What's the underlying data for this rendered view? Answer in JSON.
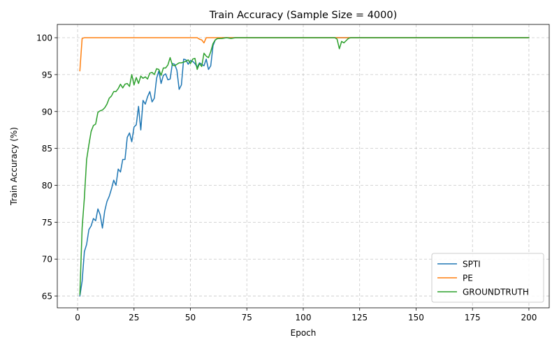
{
  "chart_data": {
    "type": "line",
    "title": "Train Accuracy (Sample Size = 4000)",
    "xlabel": "Epoch",
    "ylabel": "Train Accuracy (%)",
    "xlim": [
      -9,
      209
    ],
    "ylim": [
      63.4,
      101.8
    ],
    "xticks": [
      0,
      25,
      50,
      75,
      100,
      125,
      150,
      175,
      200
    ],
    "yticks": [
      65,
      70,
      75,
      80,
      85,
      90,
      95,
      100
    ],
    "grid": true,
    "legend_position": "lower-right",
    "series": [
      {
        "name": "SPTI",
        "color": "#1f77b4",
        "points": [
          [
            1,
            65
          ],
          [
            2,
            67
          ],
          [
            3,
            71
          ],
          [
            4,
            72
          ],
          [
            5,
            74
          ],
          [
            6,
            74.5
          ],
          [
            7,
            75.5
          ],
          [
            8,
            75.2
          ],
          [
            9,
            76.8
          ],
          [
            10,
            76
          ],
          [
            11,
            74.2
          ],
          [
            12,
            76.5
          ],
          [
            13,
            77.8
          ],
          [
            14,
            78.5
          ],
          [
            15,
            79.5
          ],
          [
            16,
            80.7
          ],
          [
            17,
            80
          ],
          [
            18,
            82.2
          ],
          [
            19,
            81.8
          ],
          [
            20,
            83.5
          ],
          [
            21,
            83.5
          ],
          [
            22,
            86.5
          ],
          [
            23,
            87.1
          ],
          [
            24,
            85.9
          ],
          [
            25,
            87.9
          ],
          [
            26,
            88.2
          ],
          [
            27,
            90.7
          ],
          [
            28,
            87.5
          ],
          [
            29,
            91.5
          ],
          [
            30,
            91
          ],
          [
            31,
            92
          ],
          [
            32,
            92.7
          ],
          [
            33,
            91.3
          ],
          [
            34,
            91.8
          ],
          [
            35,
            94.5
          ],
          [
            36,
            95.5
          ],
          [
            37,
            93.8
          ],
          [
            38,
            94.9
          ],
          [
            39,
            95.1
          ],
          [
            40,
            94.3
          ],
          [
            41,
            94.4
          ],
          [
            42,
            96.5
          ],
          [
            43,
            96.4
          ],
          [
            44,
            95.6
          ],
          [
            45,
            93
          ],
          [
            46,
            93.6
          ],
          [
            47,
            97.1
          ],
          [
            48,
            97
          ],
          [
            49,
            96.4
          ],
          [
            50,
            96.9
          ],
          [
            51,
            96.8
          ],
          [
            52,
            96.5
          ],
          [
            53,
            96
          ],
          [
            54,
            96.6
          ],
          [
            55,
            96.4
          ],
          [
            56,
            96.2
          ],
          [
            57,
            97.1
          ],
          [
            58,
            95.7
          ],
          [
            59,
            96.2
          ],
          [
            60,
            98.9
          ],
          [
            61,
            99.7
          ],
          [
            62,
            99.9
          ],
          [
            63,
            99.9
          ],
          [
            64,
            100
          ],
          [
            65,
            100
          ],
          [
            70,
            100
          ],
          [
            75,
            100
          ],
          [
            80,
            100
          ],
          [
            90,
            100
          ],
          [
            100,
            100
          ],
          [
            110,
            100
          ],
          [
            120,
            100
          ],
          [
            130,
            100
          ],
          [
            140,
            100
          ],
          [
            150,
            100
          ],
          [
            160,
            100
          ],
          [
            170,
            100
          ],
          [
            180,
            100
          ],
          [
            190,
            100
          ],
          [
            200,
            100
          ]
        ]
      },
      {
        "name": "PE",
        "color": "#ff7f0e",
        "points": [
          [
            1,
            95.5
          ],
          [
            2,
            99.9
          ],
          [
            3,
            100
          ],
          [
            5,
            100
          ],
          [
            10,
            100
          ],
          [
            20,
            100
          ],
          [
            30,
            100
          ],
          [
            40,
            100
          ],
          [
            50,
            100
          ],
          [
            53,
            100
          ],
          [
            54,
            99.8
          ],
          [
            55,
            99.7
          ],
          [
            56,
            99.3
          ],
          [
            57,
            100
          ],
          [
            58,
            100
          ],
          [
            60,
            100
          ],
          [
            70,
            100
          ],
          [
            80,
            100
          ],
          [
            90,
            100
          ],
          [
            100,
            100
          ],
          [
            110,
            100
          ],
          [
            120,
            100
          ],
          [
            130,
            100
          ],
          [
            140,
            100
          ],
          [
            150,
            100
          ],
          [
            160,
            100
          ],
          [
            170,
            100
          ],
          [
            180,
            100
          ],
          [
            190,
            100
          ],
          [
            200,
            100
          ]
        ]
      },
      {
        "name": "GROUNDTRUTH",
        "color": "#2ca02c",
        "points": [
          [
            1,
            65.2
          ],
          [
            2,
            74.2
          ],
          [
            3,
            78.3
          ],
          [
            4,
            83.5
          ],
          [
            5,
            85.5
          ],
          [
            6,
            87.3
          ],
          [
            7,
            88.1
          ],
          [
            8,
            88.3
          ],
          [
            9,
            89.9
          ],
          [
            10,
            90.1
          ],
          [
            11,
            90.2
          ],
          [
            12,
            90.5
          ],
          [
            13,
            91
          ],
          [
            14,
            91.8
          ],
          [
            15,
            92.1
          ],
          [
            16,
            92.7
          ],
          [
            17,
            92.7
          ],
          [
            18,
            93.1
          ],
          [
            19,
            93.7
          ],
          [
            20,
            93.2
          ],
          [
            21,
            93.7
          ],
          [
            22,
            93.8
          ],
          [
            23,
            93.4
          ],
          [
            24,
            95
          ],
          [
            25,
            93.6
          ],
          [
            26,
            94.6
          ],
          [
            27,
            93.8
          ],
          [
            28,
            94.8
          ],
          [
            29,
            94.5
          ],
          [
            30,
            94.7
          ],
          [
            31,
            94.4
          ],
          [
            32,
            95.2
          ],
          [
            33,
            95.3
          ],
          [
            34,
            95
          ],
          [
            35,
            95.8
          ],
          [
            36,
            95.7
          ],
          [
            37,
            94.9
          ],
          [
            38,
            95.9
          ],
          [
            39,
            95.9
          ],
          [
            40,
            96.3
          ],
          [
            41,
            97.3
          ],
          [
            42,
            96.3
          ],
          [
            43,
            96.2
          ],
          [
            44,
            96.4
          ],
          [
            45,
            96.6
          ],
          [
            46,
            96.6
          ],
          [
            47,
            96.7
          ],
          [
            48,
            96.8
          ],
          [
            49,
            97
          ],
          [
            50,
            96.5
          ],
          [
            51,
            97.1
          ],
          [
            52,
            97.2
          ],
          [
            53,
            95.7
          ],
          [
            54,
            96.5
          ],
          [
            55,
            96.1
          ],
          [
            56,
            97.9
          ],
          [
            57,
            97.5
          ],
          [
            58,
            97.3
          ],
          [
            59,
            98.1
          ],
          [
            60,
            99.2
          ],
          [
            61,
            99.7
          ],
          [
            62,
            99.9
          ],
          [
            64,
            99.9
          ],
          [
            66,
            100
          ],
          [
            68,
            99.9
          ],
          [
            70,
            100
          ],
          [
            80,
            100
          ],
          [
            90,
            100
          ],
          [
            100,
            100
          ],
          [
            110,
            100
          ],
          [
            114,
            100
          ],
          [
            115,
            99.8
          ],
          [
            116,
            98.5
          ],
          [
            117,
            99.5
          ],
          [
            118,
            99.3
          ],
          [
            119,
            99.6
          ],
          [
            120,
            99.9
          ],
          [
            121,
            100
          ],
          [
            125,
            100
          ],
          [
            130,
            100
          ],
          [
            140,
            100
          ],
          [
            150,
            100
          ],
          [
            160,
            100
          ],
          [
            170,
            100
          ],
          [
            180,
            100
          ],
          [
            190,
            100
          ],
          [
            200,
            100
          ]
        ]
      }
    ]
  }
}
